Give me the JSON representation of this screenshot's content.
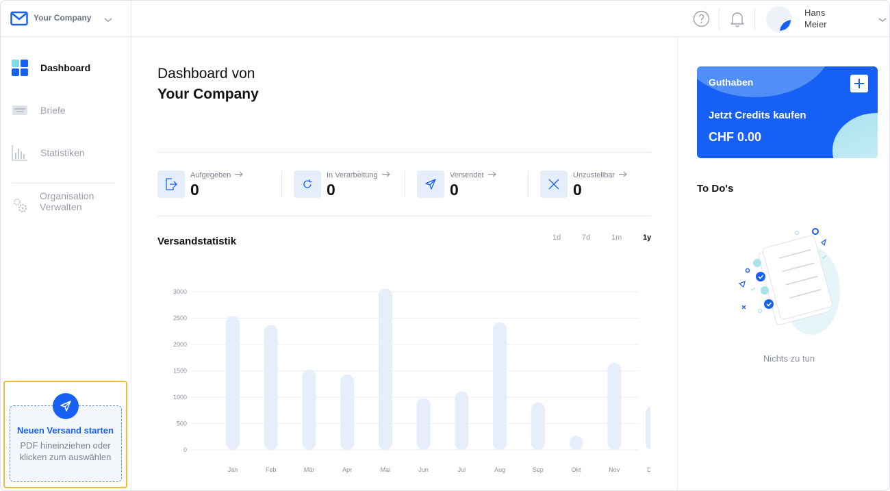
{
  "company": {
    "name": "Your Company"
  },
  "user": {
    "first_name": "Hans",
    "last_name": "Meier"
  },
  "sidebar": {
    "items": [
      {
        "label": "Dashboard",
        "icon": "dashboard-icon"
      },
      {
        "label": "Briefe",
        "icon": "letters-icon"
      },
      {
        "label": "Statistiken",
        "icon": "statistics-icon"
      }
    ],
    "org": {
      "line1": "Organisation",
      "line2": "Verwalten",
      "icon": "gear-icon"
    },
    "upload": {
      "title": "Neuen Versand starten",
      "subtitle": "PDF hineinziehen oder klicken zum auswählen"
    }
  },
  "main": {
    "title_line1": "Dashboard von",
    "title_line2": "Your Company",
    "stats": [
      {
        "label": "Aufgegeben",
        "value": "0",
        "icon": "submitted-icon"
      },
      {
        "label": "In Verarbeitung",
        "value": "0",
        "icon": "processing-icon"
      },
      {
        "label": "Versendet",
        "value": "0",
        "icon": "sent-icon"
      },
      {
        "label": "Unzustellbar",
        "value": "0",
        "icon": "undeliverable-icon"
      }
    ],
    "chart_section_title": "Versandstatistik",
    "ranges": [
      "1d",
      "7d",
      "1m",
      "1y"
    ],
    "selected_range": "1y"
  },
  "chart_data": {
    "type": "bar",
    "categories": [
      "Jan",
      "Feb",
      "Mär",
      "Apr",
      "Mai",
      "Jun",
      "Jul",
      "Aug",
      "Sep",
      "Okt",
      "Nov",
      "Dez"
    ],
    "values": [
      2540,
      2370,
      1520,
      1430,
      3060,
      980,
      1110,
      2420,
      900,
      270,
      1650,
      830
    ],
    "yticks": [
      0,
      500,
      1000,
      1500,
      2000,
      2500,
      3000
    ],
    "ylim": [
      0,
      3000
    ],
    "grid": true,
    "bar_color": "#e6eefc"
  },
  "right": {
    "credit": {
      "title": "Guthaben",
      "buy_label": "Jetzt Credits kaufen",
      "amount": "CHF 0.00"
    },
    "todo_title": "To Do's",
    "empty_label": "Nichts zu tun"
  },
  "colors": {
    "accent": "#1660f5",
    "highlight": "#f5b83d"
  }
}
